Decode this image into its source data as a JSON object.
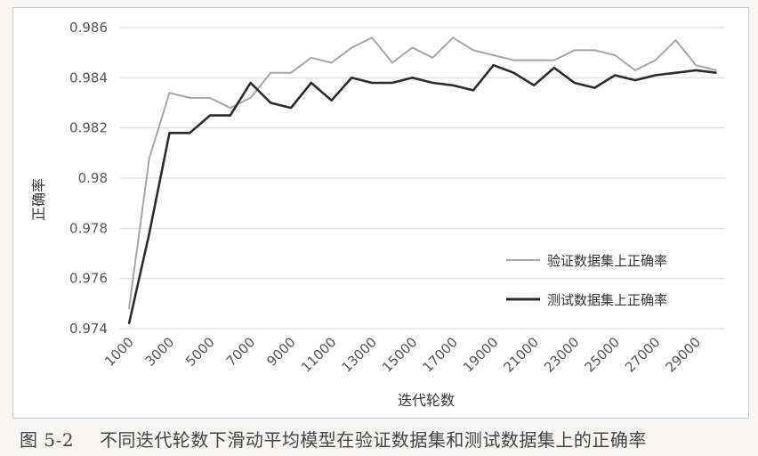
{
  "chart_data": {
    "type": "line",
    "xlabel": "迭代轮数",
    "ylabel": "正确率",
    "ylim": [
      0.974,
      0.986
    ],
    "y_ticks": [
      "0.974",
      "0.976",
      "0.978",
      "0.98",
      "0.982",
      "0.984",
      "0.986"
    ],
    "y_tick_values": [
      0.974,
      0.976,
      0.978,
      0.98,
      0.982,
      0.984,
      0.986
    ],
    "x": [
      1000,
      2000,
      3000,
      4000,
      5000,
      6000,
      7000,
      8000,
      9000,
      10000,
      11000,
      12000,
      13000,
      14000,
      15000,
      16000,
      17000,
      18000,
      19000,
      20000,
      21000,
      22000,
      23000,
      24000,
      25000,
      26000,
      27000,
      28000,
      29000,
      30000
    ],
    "x_tick_labels": [
      "1000",
      "3000",
      "5000",
      "7000",
      "9000",
      "11000",
      "13000",
      "15000",
      "17000",
      "19000",
      "21000",
      "23000",
      "25000",
      "27000",
      "29000"
    ],
    "grid": true,
    "legend_position": "right",
    "series": [
      {
        "name": "验证数据集上正确率",
        "color": "#a6a6a6",
        "values": [
          0.9748,
          0.9808,
          0.9834,
          0.9832,
          0.9832,
          0.9828,
          0.9832,
          0.9842,
          0.9842,
          0.9848,
          0.9846,
          0.9852,
          0.9856,
          0.9846,
          0.9852,
          0.9848,
          0.9856,
          0.9851,
          0.9849,
          0.9847,
          0.9847,
          0.9847,
          0.9851,
          0.9851,
          0.9849,
          0.9843,
          0.9847,
          0.9855,
          0.9845,
          0.9843
        ]
      },
      {
        "name": "测试数据集上正确率",
        "color": "#2b2b2b",
        "values": [
          0.9742,
          0.9778,
          0.9818,
          0.9818,
          0.9825,
          0.9825,
          0.9838,
          0.983,
          0.9828,
          0.9838,
          0.9831,
          0.984,
          0.9838,
          0.9838,
          0.984,
          0.9838,
          0.9837,
          0.9835,
          0.9845,
          0.9842,
          0.9837,
          0.9844,
          0.9838,
          0.9836,
          0.9841,
          0.9839,
          0.9841,
          0.9842,
          0.9843,
          0.9842
        ]
      }
    ]
  },
  "caption": {
    "number": "图 5-2",
    "text": "不同迭代轮数下滑动平均模型在验证数据集和测试数据集上的正确率"
  }
}
